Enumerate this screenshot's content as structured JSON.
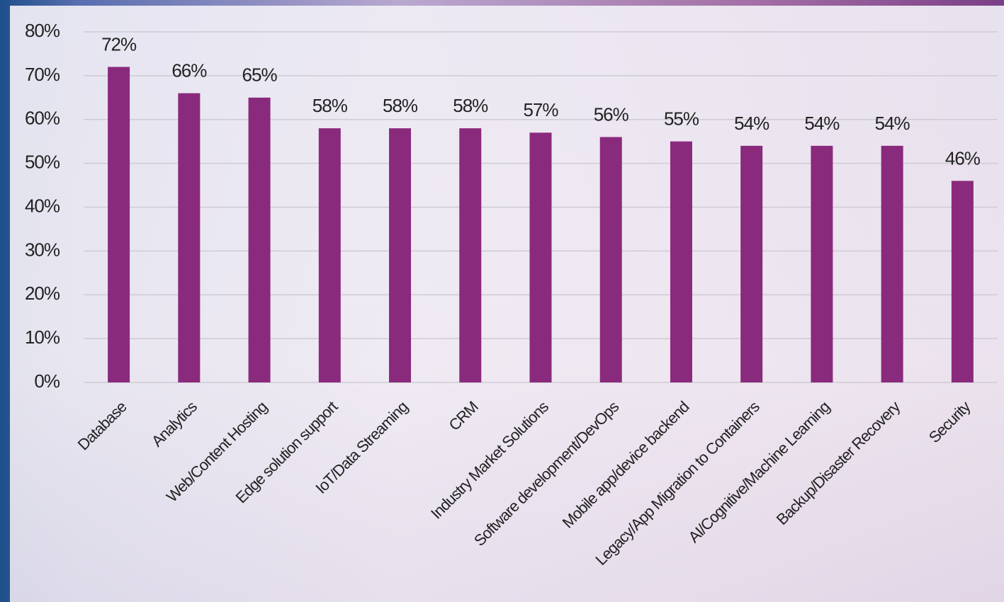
{
  "chart_data": {
    "type": "bar",
    "categories": [
      "Database",
      "Analytics",
      "Web/Content Hosting",
      "Edge solution support",
      "IoT/Data Streaming",
      "CRM",
      "Industry Market Solutions",
      "Software development/DevOps",
      "Mobile app/device backend",
      "Legacy/App Migration to Containers",
      "AI/Cognitive/Machine Learning",
      "Backup/Disaster Recovery",
      "Security"
    ],
    "values": [
      72,
      66,
      65,
      58,
      58,
      58,
      57,
      56,
      55,
      54,
      54,
      54,
      46
    ],
    "value_labels": [
      "72%",
      "66%",
      "65%",
      "58%",
      "58%",
      "58%",
      "57%",
      "56%",
      "55%",
      "54%",
      "54%",
      "54%",
      "46%"
    ],
    "color": "#8a2a7c",
    "ylim": [
      0,
      80
    ],
    "yticks": [
      {
        "value": 0,
        "label": "0%"
      },
      {
        "value": 10,
        "label": "10%"
      },
      {
        "value": 20,
        "label": "20%"
      },
      {
        "value": 30,
        "label": "30%"
      },
      {
        "value": 40,
        "label": "40%"
      },
      {
        "value": 50,
        "label": "50%"
      },
      {
        "value": 60,
        "label": "60%"
      },
      {
        "value": 70,
        "label": "70%"
      },
      {
        "value": 80,
        "label": "80%"
      }
    ],
    "grid": true
  }
}
